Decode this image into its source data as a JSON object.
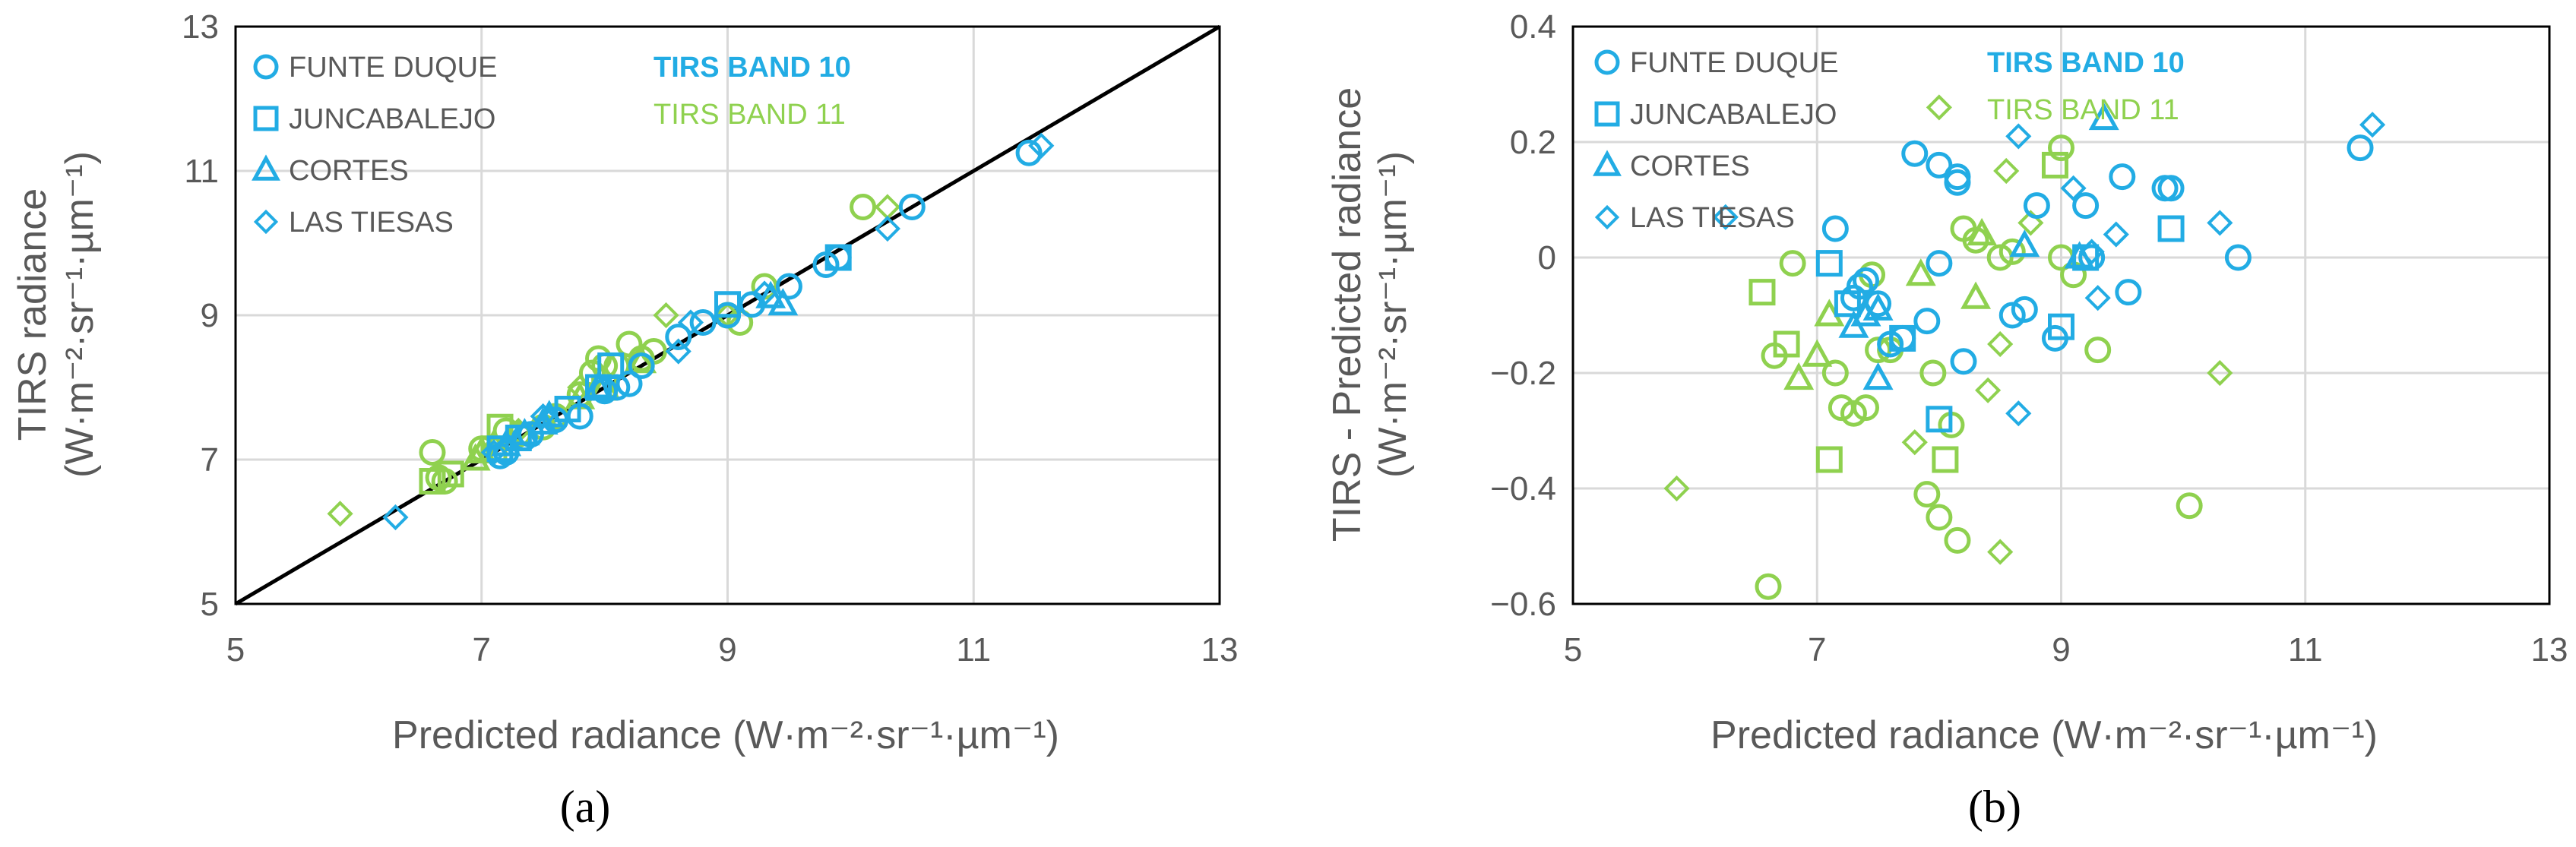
{
  "colors": {
    "band10": "#22ace4",
    "band11": "#8fd14f",
    "axis": "#000000",
    "grid": "#d9d9d9",
    "text": "#595959"
  },
  "legend": {
    "sites": [
      {
        "name": "FUNTE DUQUE",
        "marker": "circle"
      },
      {
        "name": "JUNCABALEJO",
        "marker": "square"
      },
      {
        "name": "CORTES",
        "marker": "triangle"
      },
      {
        "name": "LAS TIESAS",
        "marker": "diamond"
      }
    ],
    "band10_label": "TIRS BAND 10",
    "band11_label": "TIRS BAND 11"
  },
  "chart_data": [
    {
      "panel_label": "(a)",
      "type": "scatter",
      "xlabel": "Predicted radiance (W·m⁻²·sr⁻¹·µm⁻¹)",
      "ylabel_line1": "TIRS radiance",
      "ylabel_line2": "(W·m⁻²·sr⁻¹·µm⁻¹)",
      "xlim": [
        5,
        13
      ],
      "ylim": [
        5,
        13
      ],
      "xticks": [
        5,
        7,
        9,
        11,
        13
      ],
      "yticks": [
        5,
        7,
        9,
        11,
        13
      ],
      "grid": true,
      "identity_line": true,
      "series": [
        {
          "band": "10",
          "site": "FUNTE DUQUE",
          "points": [
            [
              7.15,
              7.05
            ],
            [
              7.2,
              7.1
            ],
            [
              7.35,
              7.3
            ],
            [
              7.4,
              7.35
            ],
            [
              7.6,
              7.55
            ],
            [
              7.8,
              7.6
            ],
            [
              8.0,
              7.95
            ],
            [
              8.1,
              8.0
            ],
            [
              8.2,
              8.05
            ],
            [
              8.3,
              8.3
            ],
            [
              8.6,
              8.7
            ],
            [
              8.8,
              8.9
            ],
            [
              9.0,
              9.0
            ],
            [
              9.2,
              9.15
            ],
            [
              9.5,
              9.4
            ],
            [
              9.8,
              9.7
            ],
            [
              9.9,
              9.8
            ],
            [
              10.5,
              10.5
            ],
            [
              11.45,
              11.25
            ]
          ]
        },
        {
          "band": "10",
          "site": "JUNCABALEJO",
          "points": [
            [
              7.15,
              7.15
            ],
            [
              7.3,
              7.3
            ],
            [
              7.7,
              7.7
            ],
            [
              7.95,
              8.0
            ],
            [
              8.05,
              8.3
            ],
            [
              9.0,
              9.15
            ],
            [
              9.9,
              9.8
            ]
          ]
        },
        {
          "band": "10",
          "site": "CORTES",
          "points": [
            [
              7.2,
              7.2
            ],
            [
              7.35,
              7.35
            ],
            [
              7.5,
              7.5
            ],
            [
              7.55,
              7.6
            ],
            [
              7.95,
              8.0
            ],
            [
              9.35,
              9.25
            ],
            [
              9.45,
              9.15
            ]
          ]
        },
        {
          "band": "10",
          "site": "LAS TIESAS",
          "points": [
            [
              6.3,
              6.2
            ],
            [
              7.1,
              7.1
            ],
            [
              7.5,
              7.6
            ],
            [
              8.6,
              8.5
            ],
            [
              8.7,
              8.9
            ],
            [
              9.3,
              9.3
            ],
            [
              10.3,
              10.2
            ],
            [
              11.55,
              11.35
            ]
          ]
        },
        {
          "band": "11",
          "site": "FUNTE DUQUE",
          "points": [
            [
              6.6,
              7.1
            ],
            [
              6.65,
              6.75
            ],
            [
              6.7,
              6.7
            ],
            [
              7.0,
              7.15
            ],
            [
              7.2,
              7.4
            ],
            [
              7.3,
              7.35
            ],
            [
              7.5,
              7.45
            ],
            [
              7.6,
              7.6
            ],
            [
              7.8,
              7.9
            ],
            [
              7.9,
              8.2
            ],
            [
              7.95,
              8.4
            ],
            [
              8.0,
              8.3
            ],
            [
              8.1,
              8.3
            ],
            [
              8.2,
              8.6
            ],
            [
              8.3,
              8.4
            ],
            [
              8.4,
              8.5
            ],
            [
              9.0,
              9.0
            ],
            [
              9.1,
              8.9
            ],
            [
              9.3,
              9.4
            ],
            [
              10.1,
              10.5
            ]
          ]
        },
        {
          "band": "11",
          "site": "JUNCABALEJO",
          "points": [
            [
              6.6,
              6.7
            ],
            [
              6.75,
              6.8
            ],
            [
              7.1,
              7.15
            ],
            [
              7.15,
              7.45
            ],
            [
              8.0,
              8.0
            ]
          ]
        },
        {
          "band": "11",
          "site": "CORTES",
          "points": [
            [
              6.95,
              7.0
            ],
            [
              7.0,
              7.1
            ],
            [
              7.1,
              7.2
            ],
            [
              7.8,
              7.85
            ],
            [
              8.0,
              8.0
            ],
            [
              8.3,
              8.35
            ]
          ]
        },
        {
          "band": "11",
          "site": "LAS TIESAS",
          "points": [
            [
              5.85,
              6.25
            ],
            [
              7.3,
              7.4
            ],
            [
              7.8,
              8.0
            ],
            [
              8.5,
              9.0
            ],
            [
              9.0,
              9.0
            ],
            [
              10.3,
              10.5
            ]
          ]
        }
      ]
    },
    {
      "panel_label": "(b)",
      "type": "scatter",
      "xlabel": "Predicted radiance (W·m⁻²·sr⁻¹·µm⁻¹)",
      "ylabel_line1": "TIRS - Predicted radiance",
      "ylabel_line2": "(W·m⁻²·sr⁻¹·µm⁻¹)",
      "xlim": [
        5,
        13
      ],
      "ylim": [
        -0.6,
        0.4
      ],
      "xticks": [
        5,
        7,
        9,
        11,
        13
      ],
      "yticks": [
        -0.6,
        -0.4,
        -0.2,
        0,
        0.2,
        0.4
      ],
      "grid": true,
      "series": [
        {
          "band": "10",
          "site": "FUNTE DUQUE",
          "points": [
            [
              7.15,
              0.05
            ],
            [
              7.3,
              -0.07
            ],
            [
              7.35,
              -0.05
            ],
            [
              7.4,
              -0.04
            ],
            [
              7.5,
              -0.08
            ],
            [
              7.6,
              -0.15
            ],
            [
              7.7,
              -0.14
            ],
            [
              7.8,
              0.18
            ],
            [
              7.9,
              -0.11
            ],
            [
              8.0,
              -0.01
            ],
            [
              8.0,
              0.16
            ],
            [
              8.15,
              0.14
            ],
            [
              8.15,
              0.13
            ],
            [
              8.2,
              -0.18
            ],
            [
              8.6,
              -0.1
            ],
            [
              8.7,
              -0.09
            ],
            [
              8.8,
              0.09
            ],
            [
              8.95,
              -0.14
            ],
            [
              9.2,
              0.09
            ],
            [
              9.25,
              0.0
            ],
            [
              9.5,
              0.14
            ],
            [
              9.55,
              -0.06
            ],
            [
              9.85,
              0.12
            ],
            [
              9.9,
              0.12
            ],
            [
              10.45,
              0.0
            ],
            [
              11.45,
              0.19
            ]
          ]
        },
        {
          "band": "10",
          "site": "JUNCABALEJO",
          "points": [
            [
              7.1,
              -0.01
            ],
            [
              7.25,
              -0.08
            ],
            [
              7.7,
              -0.14
            ],
            [
              8.0,
              -0.28
            ],
            [
              9.0,
              -0.12
            ],
            [
              9.2,
              0.0
            ],
            [
              9.9,
              0.05
            ]
          ]
        },
        {
          "band": "10",
          "site": "CORTES",
          "points": [
            [
              7.3,
              -0.12
            ],
            [
              7.4,
              -0.1
            ],
            [
              7.5,
              -0.09
            ],
            [
              7.5,
              -0.21
            ],
            [
              8.7,
              0.02
            ],
            [
              9.15,
              0.0
            ],
            [
              9.35,
              0.24
            ]
          ]
        },
        {
          "band": "10",
          "site": "LAS TIESAS",
          "points": [
            [
              6.25,
              0.07
            ],
            [
              8.65,
              -0.27
            ],
            [
              8.65,
              0.21
            ],
            [
              9.1,
              0.12
            ],
            [
              9.25,
              0.01
            ],
            [
              9.3,
              -0.07
            ],
            [
              9.45,
              0.04
            ],
            [
              10.3,
              0.06
            ],
            [
              11.55,
              0.23
            ]
          ]
        },
        {
          "band": "11",
          "site": "FUNTE DUQUE",
          "points": [
            [
              6.6,
              -0.57
            ],
            [
              6.65,
              -0.17
            ],
            [
              6.8,
              -0.01
            ],
            [
              7.15,
              -0.2
            ],
            [
              7.2,
              -0.26
            ],
            [
              7.3,
              -0.27
            ],
            [
              7.4,
              -0.26
            ],
            [
              7.45,
              -0.03
            ],
            [
              7.5,
              -0.16
            ],
            [
              7.6,
              -0.16
            ],
            [
              7.9,
              -0.41
            ],
            [
              7.95,
              -0.2
            ],
            [
              8.0,
              -0.45
            ],
            [
              8.1,
              -0.29
            ],
            [
              8.15,
              -0.49
            ],
            [
              8.2,
              0.05
            ],
            [
              8.3,
              0.03
            ],
            [
              8.5,
              0.0
            ],
            [
              8.6,
              0.01
            ],
            [
              9.0,
              0.0
            ],
            [
              9.0,
              0.19
            ],
            [
              9.1,
              -0.03
            ],
            [
              9.3,
              -0.16
            ],
            [
              10.05,
              -0.43
            ]
          ]
        },
        {
          "band": "11",
          "site": "JUNCABALEJO",
          "points": [
            [
              6.55,
              -0.06
            ],
            [
              6.75,
              -0.15
            ],
            [
              7.1,
              -0.35
            ],
            [
              8.05,
              -0.35
            ],
            [
              8.95,
              0.16
            ]
          ]
        },
        {
          "band": "11",
          "site": "CORTES",
          "points": [
            [
              6.85,
              -0.21
            ],
            [
              7.0,
              -0.17
            ],
            [
              7.1,
              -0.1
            ],
            [
              7.85,
              -0.03
            ],
            [
              8.3,
              -0.07
            ],
            [
              8.35,
              0.04
            ]
          ]
        },
        {
          "band": "11",
          "site": "LAS TIESAS",
          "points": [
            [
              5.85,
              -0.4
            ],
            [
              7.8,
              -0.32
            ],
            [
              8.0,
              0.26
            ],
            [
              8.4,
              -0.23
            ],
            [
              8.5,
              -0.15
            ],
            [
              8.5,
              -0.51
            ],
            [
              8.55,
              0.15
            ],
            [
              8.75,
              0.06
            ],
            [
              10.3,
              -0.2
            ]
          ]
        }
      ]
    }
  ]
}
